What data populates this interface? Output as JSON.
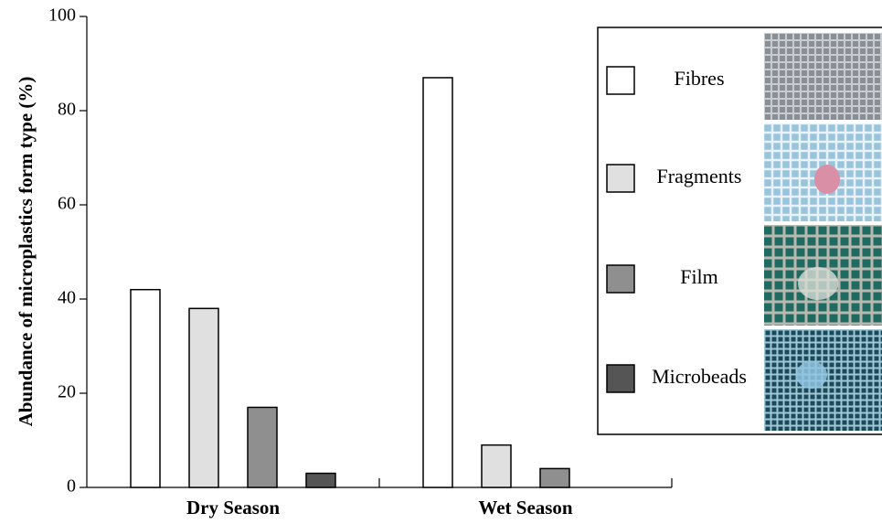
{
  "chart_data": {
    "type": "bar",
    "y_label": "Abundance of microplastics form type (%)",
    "categories": [
      "Dry Season",
      "Wet Season"
    ],
    "series": [
      {
        "name": "Fibres",
        "color": "#ffffff",
        "values": [
          42,
          87
        ]
      },
      {
        "name": "Fragments",
        "color": "#e0e0e0",
        "values": [
          38,
          9
        ]
      },
      {
        "name": "Film",
        "color": "#8f8f8f",
        "values": [
          17,
          4
        ]
      },
      {
        "name": "Microbeads",
        "color": "#555555",
        "values": [
          3,
          0
        ]
      }
    ],
    "ylim": [
      0,
      100
    ],
    "yticks": [
      0,
      20,
      40,
      60,
      80,
      100
    ],
    "grid": false,
    "legend": "upper right"
  }
}
